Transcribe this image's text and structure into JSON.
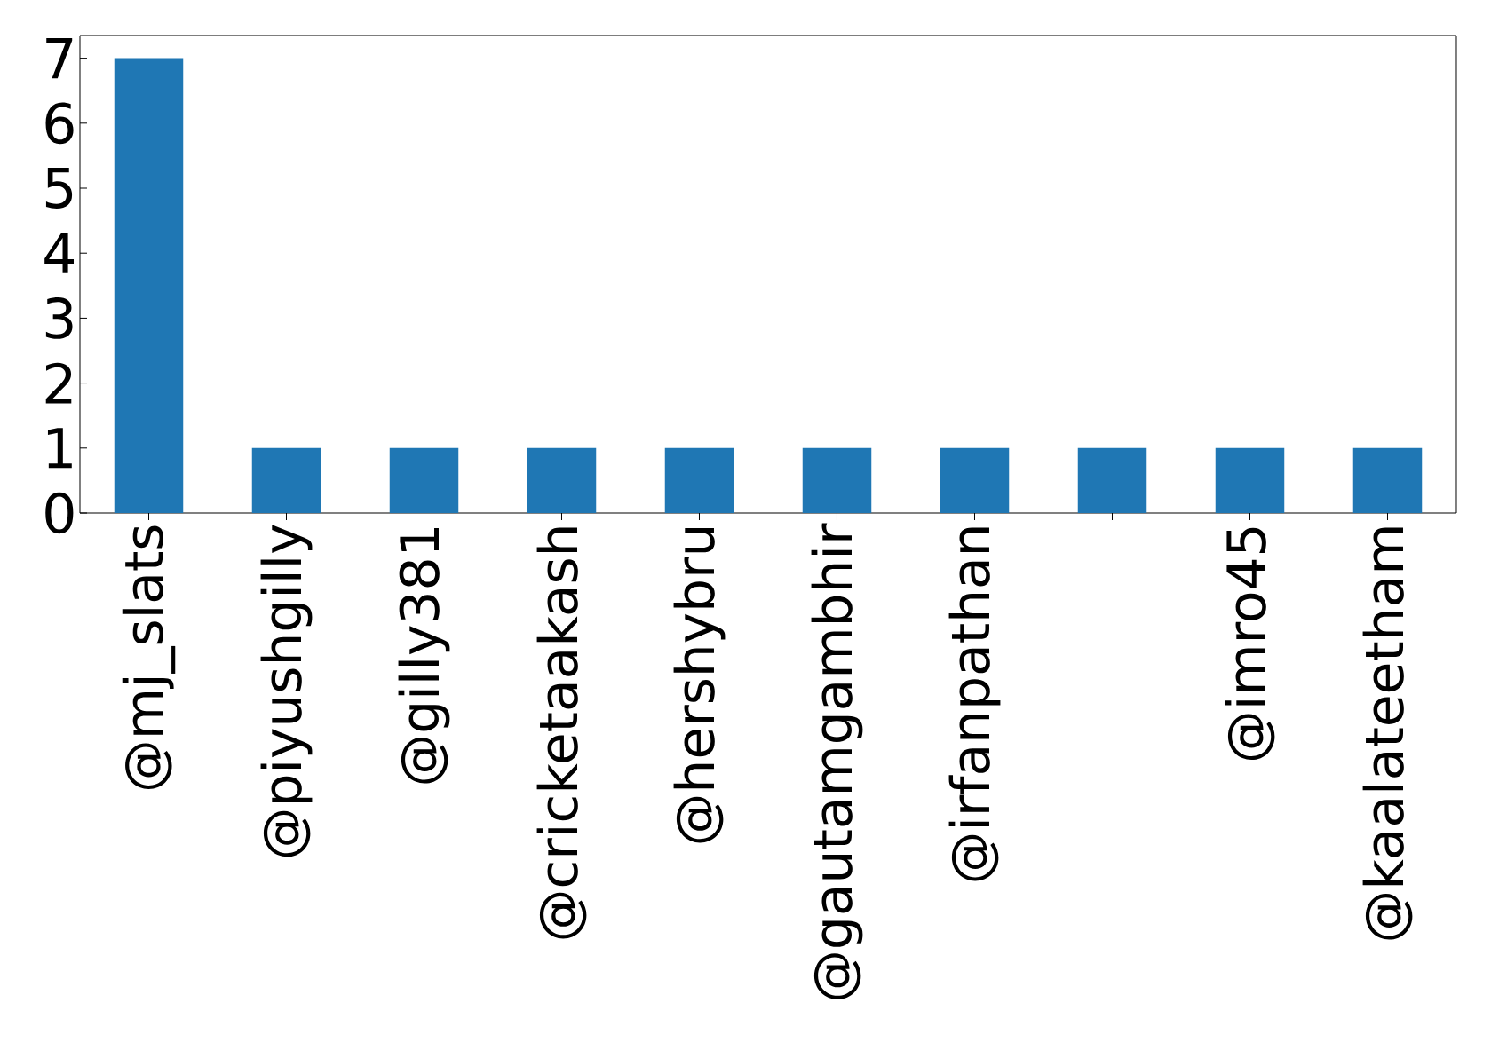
{
  "chart_data": {
    "type": "bar",
    "categories": [
      "@mj_slats",
      "@piyushgilly",
      "@gilly381",
      "@cricketaakash",
      "@hershybru",
      "@gautamgambhir",
      "@irfanpathan",
      null,
      "@imro45",
      "@kaalateetham"
    ],
    "values": [
      7,
      1,
      1,
      1,
      1,
      1,
      1,
      1,
      1,
      1
    ],
    "color": "#1f77b4",
    "ylim": [
      0,
      7.35
    ],
    "yticks": [
      0,
      1,
      2,
      3,
      4,
      5,
      6,
      7
    ],
    "grid": false
  }
}
